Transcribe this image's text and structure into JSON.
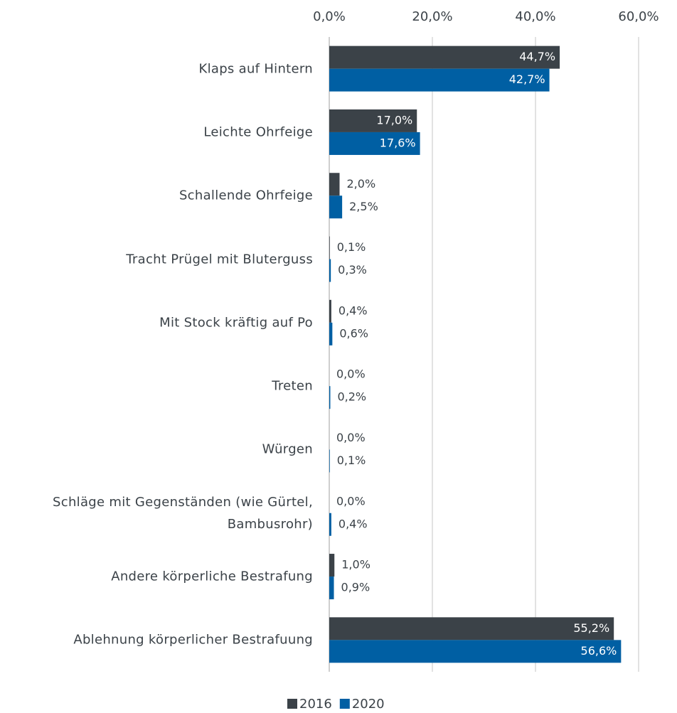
{
  "chart_data": {
    "type": "bar",
    "orientation": "horizontal",
    "categories": [
      "Klaps auf Hintern",
      "Leichte Ohrfeige",
      "Schallende Ohrfeige",
      "Tracht Prügel mit Bluterguss",
      "Mit Stock kräftig auf Po",
      "Treten",
      "Würgen",
      "Schläge mit Gegenständen (wie Gürtel, Bambusrohr)",
      "Andere körperliche Bestrafung",
      "Ablehnung körperlicher Bestrafuung"
    ],
    "series": [
      {
        "name": "2016",
        "color": "#3b4248",
        "values": [
          44.7,
          17.0,
          2.0,
          0.1,
          0.4,
          0.0,
          0.0,
          0.0,
          1.0,
          55.2
        ],
        "value_labels": [
          "44,7%",
          "17,0%",
          "2,0%",
          "0,1%",
          "0,4%",
          "0,0%",
          "0,0%",
          "0,0%",
          "1,0%",
          "55,2%"
        ]
      },
      {
        "name": "2020",
        "color": "#005fa3",
        "values": [
          42.7,
          17.6,
          2.5,
          0.3,
          0.6,
          0.2,
          0.1,
          0.4,
          0.9,
          56.6
        ],
        "value_labels": [
          "42,7%",
          "17,6%",
          "2,5%",
          "0,3%",
          "0,6%",
          "0,2%",
          "0,1%",
          "0,4%",
          "0,9%",
          "56,6%"
        ]
      }
    ],
    "xlim": [
      0,
      60
    ],
    "xticks": [
      {
        "value": 0,
        "label": "0,0%"
      },
      {
        "value": 20,
        "label": "20,0%"
      },
      {
        "value": 40,
        "label": "40,0%"
      },
      {
        "value": 60,
        "label": "60,0%"
      }
    ],
    "grid": true,
    "legend": "bottom"
  }
}
